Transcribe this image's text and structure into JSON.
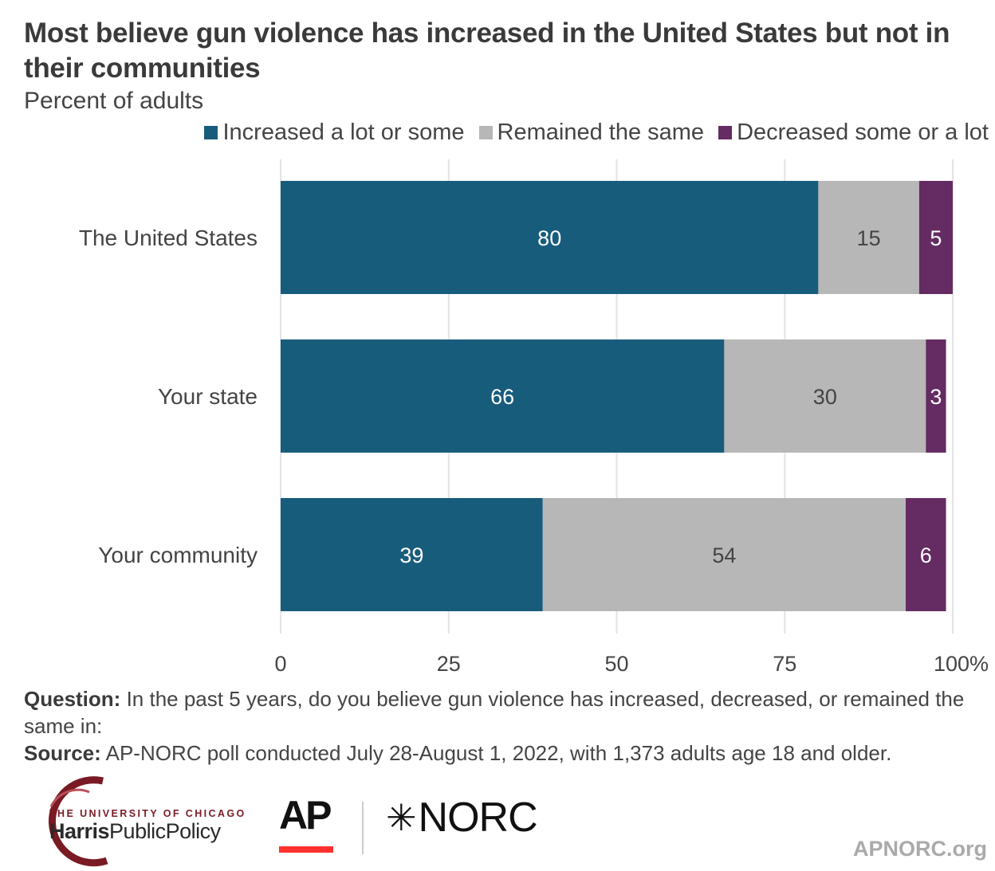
{
  "title": "Most believe gun violence has increased in the United States but not in their communities",
  "subtitle": "Percent of adults",
  "legend": [
    {
      "label": "Increased a lot or some",
      "color": "#185c7c"
    },
    {
      "label": "Remained the same",
      "color": "#b7b7b7"
    },
    {
      "label": "Decreased some or a lot",
      "color": "#642c62"
    }
  ],
  "chart_data": {
    "type": "bar",
    "orientation": "horizontal",
    "stacked": true,
    "categories": [
      "The United States",
      "Your state",
      "Your community"
    ],
    "series": [
      {
        "name": "Increased a lot or some",
        "values": [
          80,
          66,
          39
        ],
        "color": "#185c7c",
        "label_color": "#ffffff"
      },
      {
        "name": "Remained the same",
        "values": [
          15,
          30,
          54
        ],
        "color": "#b7b7b7",
        "label_color": "#444444"
      },
      {
        "name": "Decreased some or a lot",
        "values": [
          5,
          3,
          6
        ],
        "color": "#642c62",
        "label_color": "#ffffff"
      }
    ],
    "xlim": [
      0,
      100
    ],
    "x_ticks": [
      "0",
      "25",
      "50",
      "75",
      "100%"
    ],
    "x_tick_values": [
      0,
      25,
      50,
      75,
      100
    ],
    "grid": true,
    "legend_position": "top"
  },
  "notes": {
    "question_label": "Question:",
    "question_text": " In the past 5 years, do you believe gun violence has increased, decreased, or remained the same in:",
    "source_label": "Source:",
    "source_text": " AP-NORC poll conducted July 28-August 1, 2022, with 1,373 adults age 18 and older."
  },
  "logos": {
    "harris_small": "THE UNIVERSITY OF CHICAGO",
    "harris_bold": "Harris",
    "harris_rest": "PublicPolicy",
    "ap": "AP",
    "norc_star": "✳",
    "norc": "NORC"
  },
  "site": "APNORC.org"
}
